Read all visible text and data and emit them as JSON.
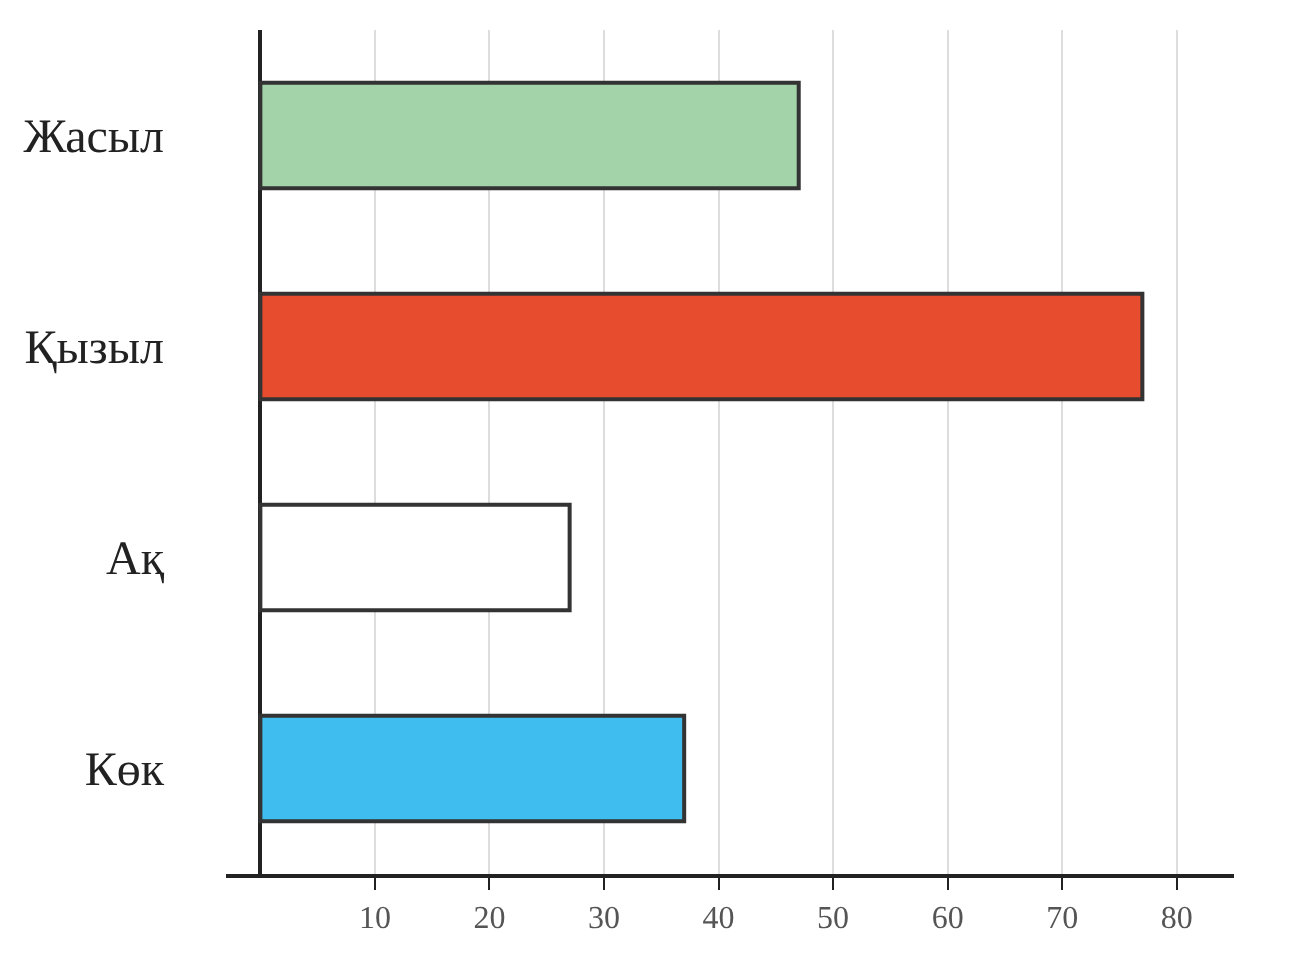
{
  "chart_data": {
    "type": "bar",
    "orientation": "horizontal",
    "categories": [
      "Жасыл",
      "Қызыл",
      "Ақ",
      "Көк"
    ],
    "values": [
      47,
      77,
      27,
      37
    ],
    "colors": [
      "#a3d3a8",
      "#e84c2f",
      "#ffffff",
      "#3fbdee"
    ],
    "xlim": [
      -3,
      85
    ],
    "xticks": [
      10,
      20,
      30,
      40,
      50,
      60,
      70,
      80
    ],
    "grid": "x"
  }
}
